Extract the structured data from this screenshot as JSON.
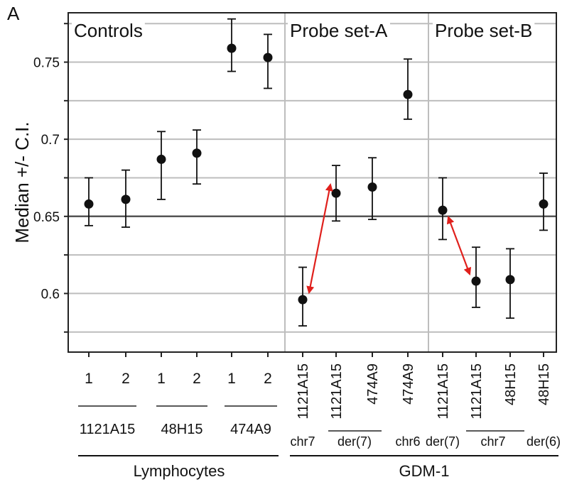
{
  "chart_data": {
    "type": "scatter",
    "panel_label": "A",
    "ylabel": "Median +/- C.I.",
    "ylim": [
      0.562,
      0.782
    ],
    "y_ticks": [
      0.6,
      0.65,
      0.7,
      0.75
    ],
    "y_tick_labels": [
      "0.6",
      "0.65",
      "0.7",
      "0.75"
    ],
    "y_minor_gridlines": [
      0.575,
      0.625,
      0.675,
      0.725,
      0.775
    ],
    "reference_line": 0.65,
    "grid": true,
    "section_titles": [
      "Controls",
      "Probe set-A",
      "Probe set-B"
    ],
    "categories": [
      "1",
      "2",
      "1",
      "2",
      "1",
      "2",
      "1121A15",
      "1121A15",
      "474A9",
      "474A9",
      "1121A15",
      "1121A15",
      "48H15",
      "48H15"
    ],
    "points": [
      {
        "label": "1",
        "median": 0.658,
        "lower": 0.644,
        "upper": 0.675
      },
      {
        "label": "2",
        "median": 0.661,
        "lower": 0.643,
        "upper": 0.68
      },
      {
        "label": "1",
        "median": 0.687,
        "lower": 0.661,
        "upper": 0.705
      },
      {
        "label": "2",
        "median": 0.691,
        "lower": 0.671,
        "upper": 0.706
      },
      {
        "label": "1",
        "median": 0.759,
        "lower": 0.744,
        "upper": 0.778
      },
      {
        "label": "2",
        "median": 0.753,
        "lower": 0.733,
        "upper": 0.768
      },
      {
        "label": "1121A15",
        "median": 0.596,
        "lower": 0.579,
        "upper": 0.617
      },
      {
        "label": "1121A15",
        "median": 0.665,
        "lower": 0.647,
        "upper": 0.683
      },
      {
        "label": "474A9",
        "median": 0.669,
        "lower": 0.648,
        "upper": 0.688
      },
      {
        "label": "474A9",
        "median": 0.729,
        "lower": 0.713,
        "upper": 0.752
      },
      {
        "label": "1121A15",
        "median": 0.654,
        "lower": 0.635,
        "upper": 0.675
      },
      {
        "label": "1121A15",
        "median": 0.608,
        "lower": 0.591,
        "upper": 0.63
      },
      {
        "label": "48H15",
        "median": 0.609,
        "lower": 0.584,
        "upper": 0.629
      },
      {
        "label": "48H15",
        "median": 0.658,
        "lower": 0.641,
        "upper": 0.678
      }
    ],
    "sub_labels": [
      "chr7",
      "der(7)",
      "chr6",
      "der(7)",
      "chr7",
      "der(6)"
    ],
    "probe_group_labels": [
      "1121A15",
      "48H15",
      "474A9"
    ],
    "group_labels": [
      "Lymphocytes",
      "GDM-1"
    ],
    "arrow_color": "#e0201c",
    "point_color": "#111111",
    "grid_color": "#bdbdbd"
  }
}
